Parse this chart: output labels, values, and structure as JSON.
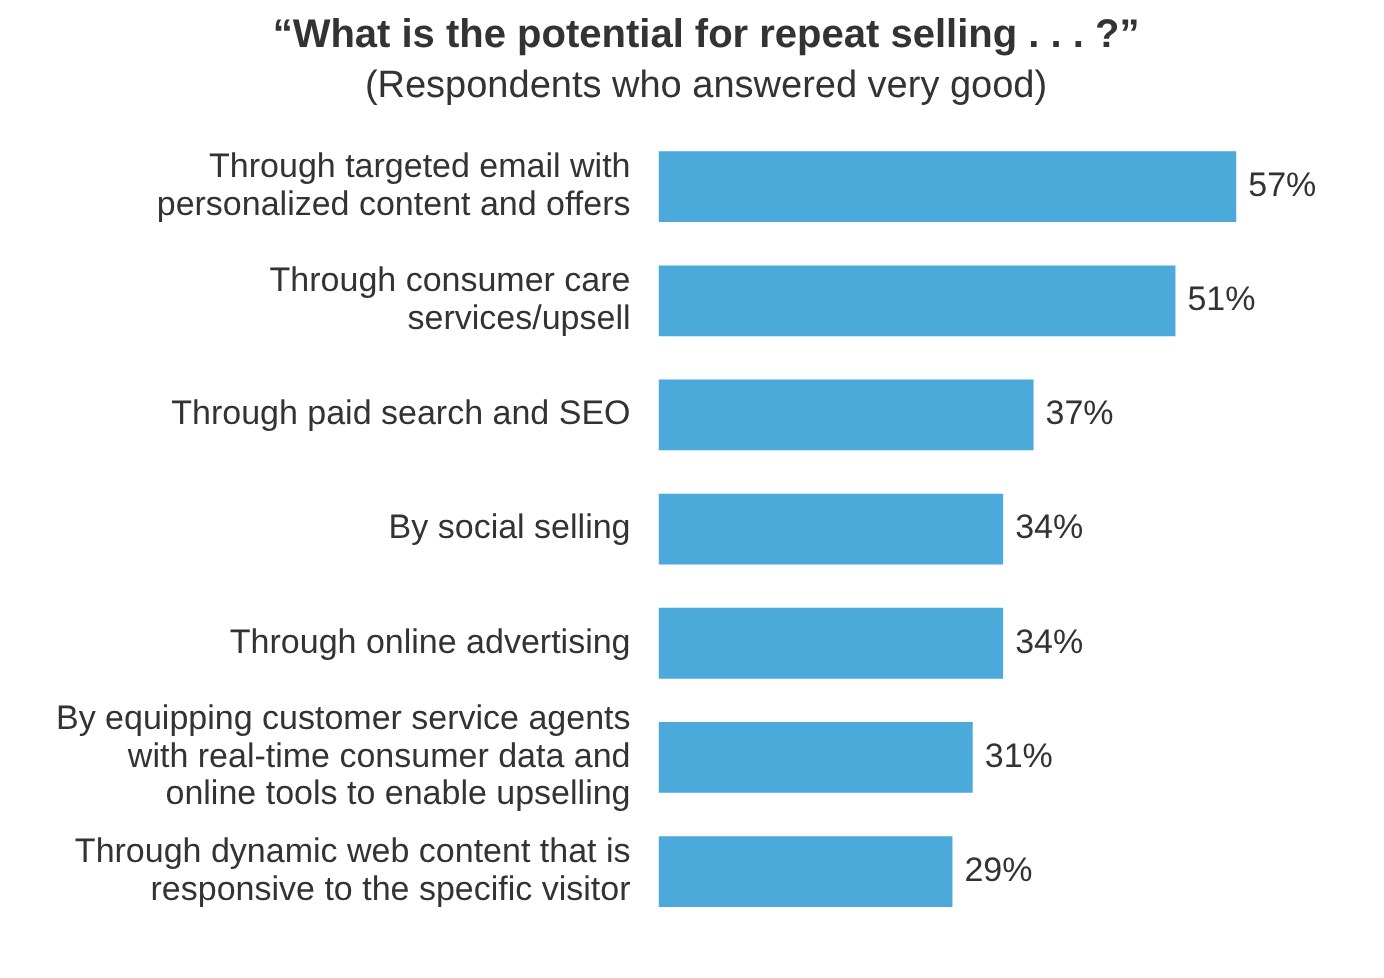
{
  "chart_data": {
    "type": "bar",
    "orientation": "horizontal",
    "title": "“What is the potential for repeat selling . . . ?”",
    "subtitle": "(Respondents who answered very good)",
    "categories": [
      "Through targeted email with personalized content and offers",
      "Through consumer care services/upsell",
      "Through paid search and SEO",
      "By social selling",
      "Through online advertising",
      "By equipping customer service agents with real-time consumer data and online tools to enable upselling",
      "Through dynamic web content that is responsive to the specific visitor"
    ],
    "values": [
      57,
      51,
      37,
      34,
      34,
      31,
      29
    ],
    "value_labels": [
      "57%",
      "51%",
      "37%",
      "34%",
      "34%",
      "31%",
      "29%"
    ],
    "color": "#4baad9",
    "tick_labels": "y"
  }
}
